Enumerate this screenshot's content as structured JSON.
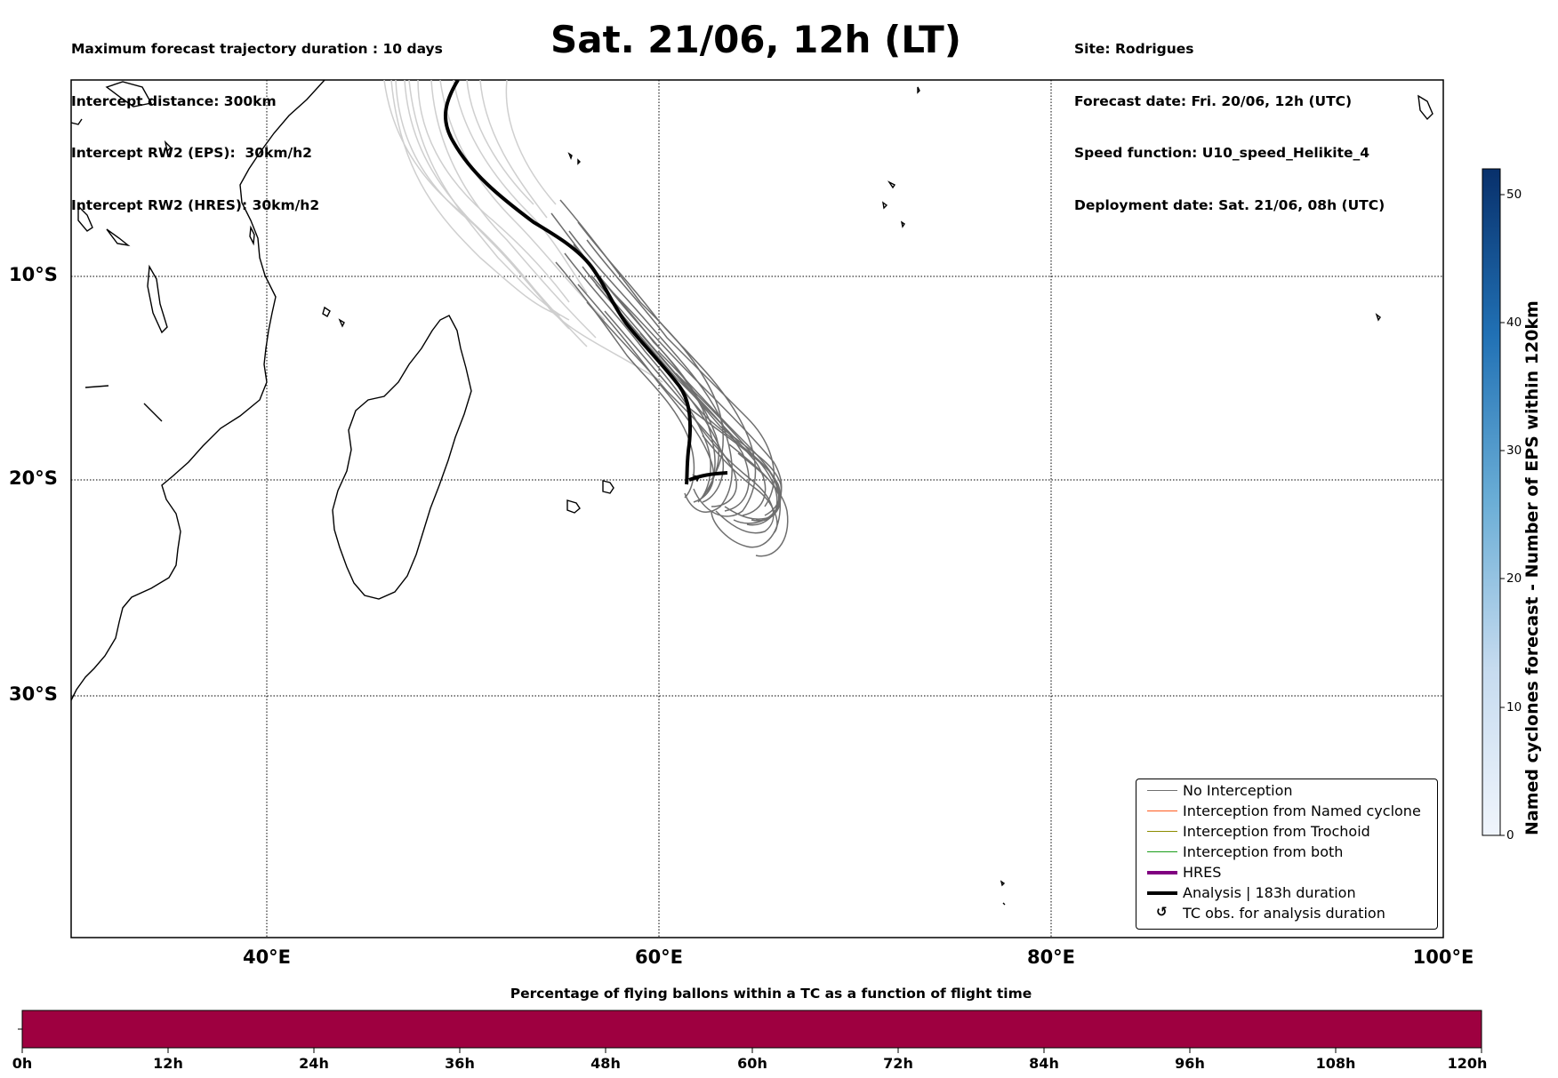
{
  "header": {
    "left_lines": [
      "Maximum forecast trajectory duration : 10 days",
      "Intercept distance: 300km",
      "Intercept RW2 (EPS):  30km/h2",
      "Intercept RW2 (HRES): 30km/h2"
    ],
    "title": "Sat. 21/06, 12h (LT)",
    "right_lines": [
      "Site: Rodrigues",
      "Forecast date: Fri. 20/06, 12h (UTC)",
      "Speed function: U10_speed_Helikite_4",
      "Deployment date: Sat. 21/06, 08h (UTC)"
    ]
  },
  "map": {
    "lat_labels": [
      "10°S",
      "20°S",
      "30°S"
    ],
    "lon_labels": [
      "40°E",
      "60°E",
      "80°E",
      "100°E"
    ],
    "land_color": "#ffffff",
    "coast_color": "#000000",
    "grid_style": "dotted"
  },
  "legend": {
    "items": [
      {
        "label": "No Interception",
        "color": "#707070",
        "style": "thin"
      },
      {
        "label": "Interception from Named cyclone",
        "color": "#ff5a1e",
        "style": "thin"
      },
      {
        "label": "Interception from Trochoid",
        "color": "#8c8c00",
        "style": "thin"
      },
      {
        "label": "Interception from both",
        "color": "#1a9e1a",
        "style": "thin"
      },
      {
        "label": "HRES",
        "color": "#800080",
        "style": "thick"
      },
      {
        "label": "Analysis | 183h duration",
        "color": "#000000",
        "style": "thick"
      },
      {
        "label": "TC obs. for analysis duration",
        "color": "#000000",
        "style": "symbol",
        "symbol": "↺"
      }
    ]
  },
  "colorbar": {
    "title": "Named cyclones forecast - Number of EPS within 120km",
    "ticks": [
      "0",
      "10",
      "20",
      "30",
      "40",
      "50"
    ],
    "range": [
      0,
      52
    ],
    "color_low": "#f0f5fc",
    "color_high": "#08306b"
  },
  "bottom_bar": {
    "title": "Percentage of flying ballons within a TC as a function of flight time",
    "ticks": [
      "0h",
      "12h",
      "24h",
      "36h",
      "48h",
      "60h",
      "72h",
      "84h",
      "96h",
      "108h",
      "120h"
    ],
    "fill_color": "#9e0040"
  }
}
